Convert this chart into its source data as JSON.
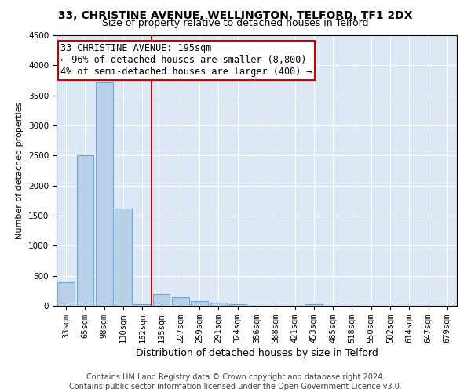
{
  "title": "33, CHRISTINE AVENUE, WELLINGTON, TELFORD, TF1 2DX",
  "subtitle": "Size of property relative to detached houses in Telford",
  "xlabel": "Distribution of detached houses by size in Telford",
  "ylabel": "Number of detached properties",
  "categories": [
    "33sqm",
    "65sqm",
    "98sqm",
    "130sqm",
    "162sqm",
    "195sqm",
    "227sqm",
    "259sqm",
    "291sqm",
    "324sqm",
    "356sqm",
    "388sqm",
    "421sqm",
    "453sqm",
    "485sqm",
    "518sqm",
    "550sqm",
    "582sqm",
    "614sqm",
    "647sqm",
    "679sqm"
  ],
  "values": [
    390,
    2500,
    3720,
    1620,
    30,
    200,
    140,
    80,
    50,
    30,
    0,
    0,
    0,
    30,
    0,
    0,
    0,
    0,
    0,
    0,
    0
  ],
  "bar_color": "#b8d0e8",
  "bar_edge_color": "#6aaad4",
  "redline_x": 4.5,
  "annotation_text": "33 CHRISTINE AVENUE: 195sqm\n← 96% of detached houses are smaller (8,800)\n4% of semi-detached houses are larger (400) →",
  "annotation_box_color": "#ffffff",
  "annotation_box_edge": "#cc0000",
  "redline_color": "#cc0000",
  "ylim": [
    0,
    4500
  ],
  "yticks": [
    0,
    500,
    1000,
    1500,
    2000,
    2500,
    3000,
    3500,
    4000,
    4500
  ],
  "footer": "Contains HM Land Registry data © Crown copyright and database right 2024.\nContains public sector information licensed under the Open Government Licence v3.0.",
  "title_fontsize": 10,
  "subtitle_fontsize": 9,
  "xlabel_fontsize": 9,
  "ylabel_fontsize": 8,
  "tick_fontsize": 7.5,
  "annotation_fontsize": 8.5,
  "footer_fontsize": 7,
  "background_color": "#ffffff",
  "plot_bg_color": "#dce8f5"
}
